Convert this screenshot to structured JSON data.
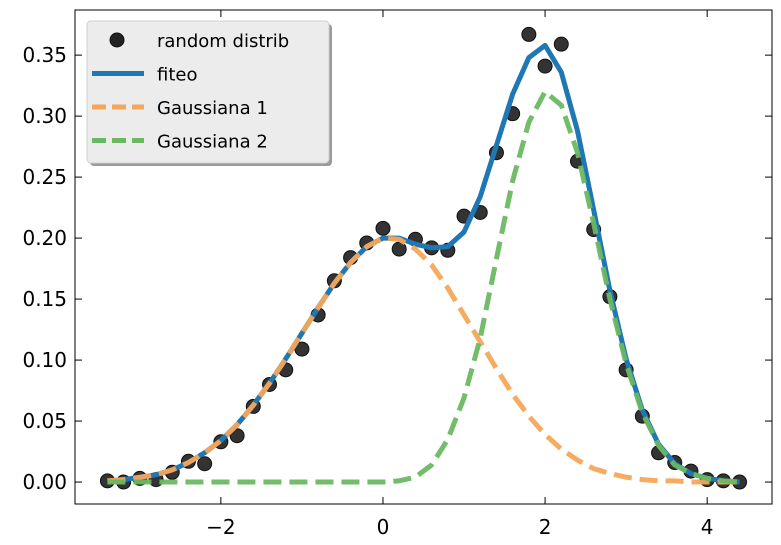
{
  "chart_data": {
    "type": "line",
    "title": "",
    "xlabel": "",
    "ylabel": "",
    "xlim": [
      -3.8,
      4.8
    ],
    "ylim": [
      -0.018,
      0.387
    ],
    "xticks": [
      -2,
      0,
      2,
      4
    ],
    "xtick_labels": [
      "−2",
      "0",
      "2",
      "4"
    ],
    "yticks": [
      0.0,
      0.05,
      0.1,
      0.15,
      0.2,
      0.25,
      0.3,
      0.35
    ],
    "ytick_labels": [
      "0.00",
      "0.05",
      "0.10",
      "0.15",
      "0.20",
      "0.25",
      "0.30",
      "0.35"
    ],
    "grid": false,
    "legend_position": "top-left",
    "series": [
      {
        "name": "random distrib",
        "kind": "scatter",
        "color": "#222222",
        "x": [
          -3.4,
          -3.2,
          -3.0,
          -2.8,
          -2.6,
          -2.4,
          -2.2,
          -2.0,
          -1.8,
          -1.6,
          -1.4,
          -1.2,
          -1.0,
          -0.8,
          -0.6,
          -0.4,
          -0.2,
          0.0,
          0.2,
          0.4,
          0.6,
          0.8,
          1.0,
          1.2,
          1.4,
          1.6,
          1.8,
          2.0,
          2.2,
          2.4,
          2.6,
          2.8,
          3.0,
          3.2,
          3.4,
          3.6,
          3.8,
          4.0,
          4.2,
          4.4
        ],
        "y": [
          0.001,
          0.0,
          0.003,
          0.002,
          0.008,
          0.017,
          0.015,
          0.033,
          0.038,
          0.062,
          0.08,
          0.092,
          0.109,
          0.137,
          0.165,
          0.184,
          0.196,
          0.208,
          0.191,
          0.199,
          0.192,
          0.19,
          0.218,
          0.221,
          0.27,
          0.302,
          0.367,
          0.341,
          0.359,
          0.263,
          0.207,
          0.152,
          0.092,
          0.054,
          0.024,
          0.016,
          0.009,
          0.002,
          0.001,
          0.0
        ]
      },
      {
        "name": "fiteo",
        "kind": "line",
        "color": "#1f77b4",
        "x": [
          -3.4,
          -3.2,
          -3.0,
          -2.8,
          -2.6,
          -2.4,
          -2.2,
          -2.0,
          -1.8,
          -1.6,
          -1.4,
          -1.2,
          -1.0,
          -0.8,
          -0.6,
          -0.4,
          -0.2,
          0.0,
          0.2,
          0.4,
          0.6,
          0.8,
          1.0,
          1.2,
          1.4,
          1.6,
          1.8,
          2.0,
          2.2,
          2.4,
          2.6,
          2.8,
          3.0,
          3.2,
          3.4,
          3.6,
          3.8,
          4.0,
          4.2,
          4.4
        ],
        "y": [
          0.001,
          0.002,
          0.004,
          0.006,
          0.01,
          0.016,
          0.024,
          0.034,
          0.047,
          0.063,
          0.081,
          0.101,
          0.122,
          0.143,
          0.163,
          0.18,
          0.193,
          0.2,
          0.2,
          0.195,
          0.192,
          0.193,
          0.205,
          0.234,
          0.276,
          0.318,
          0.348,
          0.358,
          0.336,
          0.288,
          0.223,
          0.157,
          0.101,
          0.059,
          0.031,
          0.015,
          0.007,
          0.003,
          0.001,
          0.0
        ]
      },
      {
        "name": "Gaussiana 1",
        "kind": "dashed-line",
        "color": "#f5a65b",
        "x": [
          -3.4,
          -3.2,
          -3.0,
          -2.8,
          -2.6,
          -2.4,
          -2.2,
          -2.0,
          -1.8,
          -1.6,
          -1.4,
          -1.2,
          -1.0,
          -0.8,
          -0.6,
          -0.4,
          -0.2,
          0.0,
          0.2,
          0.4,
          0.6,
          0.8,
          1.0,
          1.2,
          1.4,
          1.6,
          1.8,
          2.0,
          2.2,
          2.4,
          2.6,
          2.8,
          3.0,
          3.2,
          3.4,
          3.6,
          3.8,
          4.0,
          4.2,
          4.4
        ],
        "y": [
          0.001,
          0.002,
          0.004,
          0.006,
          0.01,
          0.016,
          0.024,
          0.034,
          0.047,
          0.063,
          0.081,
          0.101,
          0.122,
          0.143,
          0.163,
          0.18,
          0.193,
          0.2,
          0.199,
          0.191,
          0.178,
          0.159,
          0.137,
          0.115,
          0.093,
          0.072,
          0.054,
          0.039,
          0.027,
          0.018,
          0.011,
          0.007,
          0.004,
          0.002,
          0.001,
          0.001,
          0.0,
          0.0,
          0.0,
          0.0
        ]
      },
      {
        "name": "Gaussiana 2",
        "kind": "dashed-line",
        "color": "#6ab862",
        "x": [
          -3.4,
          -3.2,
          -3.0,
          -2.8,
          -2.6,
          -2.4,
          -2.2,
          -2.0,
          -1.8,
          -1.6,
          -1.4,
          -1.2,
          -1.0,
          -0.8,
          -0.6,
          -0.4,
          -0.2,
          0.0,
          0.2,
          0.4,
          0.6,
          0.8,
          1.0,
          1.2,
          1.4,
          1.6,
          1.8,
          2.0,
          2.2,
          2.4,
          2.6,
          2.8,
          3.0,
          3.2,
          3.4,
          3.6,
          3.8,
          4.0,
          4.2,
          4.4
        ],
        "y": [
          0.0,
          0.0,
          0.0,
          0.0,
          0.0,
          0.0,
          0.0,
          0.0,
          0.0,
          0.0,
          0.0,
          0.0,
          0.0,
          0.0,
          0.0,
          0.0,
          0.0,
          0.0,
          0.001,
          0.004,
          0.014,
          0.035,
          0.069,
          0.118,
          0.183,
          0.247,
          0.295,
          0.32,
          0.309,
          0.27,
          0.212,
          0.15,
          0.097,
          0.057,
          0.03,
          0.014,
          0.007,
          0.003,
          0.001,
          0.0
        ]
      }
    ]
  }
}
